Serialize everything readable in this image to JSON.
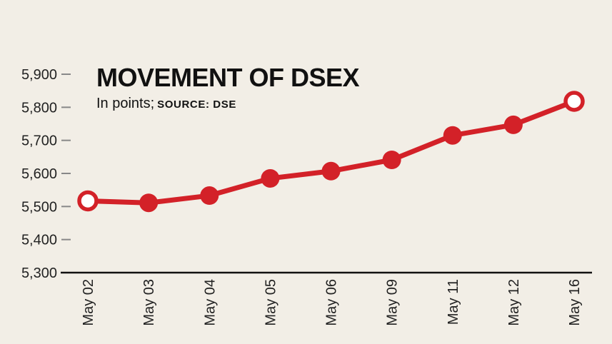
{
  "chart_data": {
    "type": "line",
    "title": "MOVEMENT OF DSEX",
    "subtitle": "In points;",
    "source_label": "SOURCE: DSE",
    "categories": [
      "May 02",
      "May 03",
      "May 04",
      "May 05",
      "May 06",
      "May 09",
      "May 11",
      "May 12",
      "May 16"
    ],
    "values": [
      5517,
      5511,
      5533,
      5585,
      5607,
      5641,
      5715,
      5747,
      5818
    ],
    "ylim": [
      5300,
      5900
    ],
    "yticks": [
      5300,
      5400,
      5500,
      5600,
      5700,
      5800,
      5900
    ],
    "ytick_labels": [
      "5,300",
      "5,400",
      "5,500",
      "5,600",
      "5,700",
      "5,800",
      "5,900"
    ],
    "grid": false,
    "colors": {
      "line": "#d32128",
      "marker_hollow_fill": "#ffffff",
      "axis": "#111111",
      "tick": "#888888",
      "background": "#f2eee6"
    }
  }
}
